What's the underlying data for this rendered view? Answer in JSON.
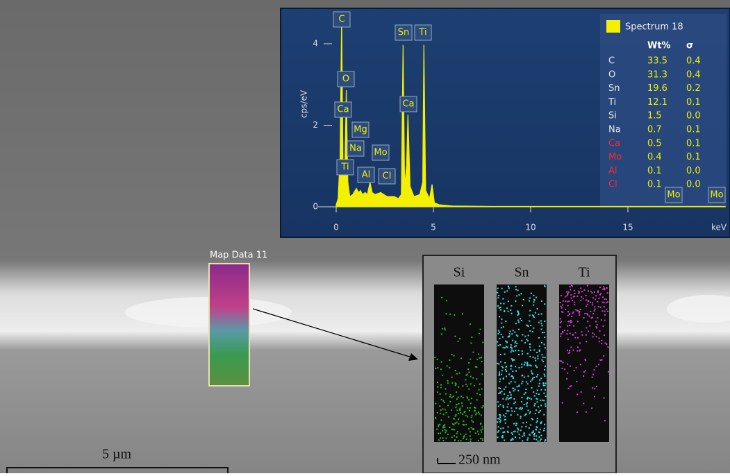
{
  "chart_data": {
    "type": "area",
    "color": "#f4f000",
    "x_label": "keV",
    "y_label": "cps/eV",
    "x": [
      0,
      0.1,
      0.2,
      0.28,
      0.35,
      0.45,
      0.52,
      0.6,
      0.7,
      0.85,
      1.04,
      1.15,
      1.25,
      1.35,
      1.49,
      1.6,
      1.74,
      1.85,
      2.0,
      2.29,
      2.45,
      2.62,
      2.8,
      3.0,
      3.2,
      3.35,
      3.44,
      3.52,
      3.62,
      3.69,
      3.8,
      4.0,
      4.3,
      4.45,
      4.51,
      4.6,
      4.8,
      4.93,
      5.05,
      5.3,
      6,
      8,
      10,
      12,
      15,
      18,
      20
    ],
    "values": [
      0.05,
      0.2,
      1.2,
      4.7,
      1.0,
      1.0,
      2.86,
      0.6,
      0.25,
      0.3,
      0.45,
      0.35,
      0.4,
      0.3,
      0.35,
      0.3,
      0.6,
      0.35,
      0.3,
      0.35,
      0.3,
      0.25,
      0.25,
      0.25,
      0.2,
      0.3,
      3.97,
      0.5,
      1.0,
      2.26,
      0.5,
      0.25,
      0.3,
      0.6,
      3.97,
      0.4,
      0.2,
      0.55,
      0.1,
      0.05,
      0.02,
      0.01,
      0.01,
      0.01,
      0.01,
      0.01,
      0.01
    ],
    "xlim": [
      0,
      20
    ],
    "xticks": [
      0,
      5,
      10,
      15
    ],
    "ylim": [
      0,
      4.8
    ],
    "yticks": [
      0,
      2,
      4
    ],
    "peak_labels": [
      "C",
      "O",
      "Ca",
      "Mg",
      "Na",
      "Mo",
      "Ti",
      "Al",
      "Cl",
      "Sn",
      "Ti",
      "Ca",
      "Mo",
      "Mo"
    ],
    "legend": {
      "title": "Spectrum 18",
      "header": [
        "Wt%",
        "σ"
      ],
      "rows": [
        {
          "element": "C",
          "wt": "33.5",
          "sigma": "0.4",
          "color": "#e8e8e8"
        },
        {
          "element": "O",
          "wt": "31.3",
          "sigma": "0.4",
          "color": "#e8e8e8"
        },
        {
          "element": "Sn",
          "wt": "19.6",
          "sigma": "0.2",
          "color": "#e8e8e8"
        },
        {
          "element": "Ti",
          "wt": "12.1",
          "sigma": "0.1",
          "color": "#e8e8e8"
        },
        {
          "element": "Si",
          "wt": "1.5",
          "sigma": "0.0",
          "color": "#e8e8e8"
        },
        {
          "element": "Na",
          "wt": "0.7",
          "sigma": "0.1",
          "color": "#e8e8e8"
        },
        {
          "element": "Ca",
          "wt": "0.5",
          "sigma": "0.1",
          "color": "#ff2a2a"
        },
        {
          "element": "Mo",
          "wt": "0.4",
          "sigma": "0.1",
          "color": "#ff2a2a"
        },
        {
          "element": "Al",
          "wt": "0.1",
          "sigma": "0.0",
          "color": "#ff2a2a"
        },
        {
          "element": "Cl",
          "wt": "0.1",
          "sigma": "0.0",
          "color": "#ff2a2a"
        }
      ]
    }
  },
  "image": {
    "map_label": "Map Data 11",
    "maps": [
      "Si",
      "Sn",
      "Ti"
    ],
    "inset_scale": "250 nm",
    "scale": "5 µm"
  }
}
